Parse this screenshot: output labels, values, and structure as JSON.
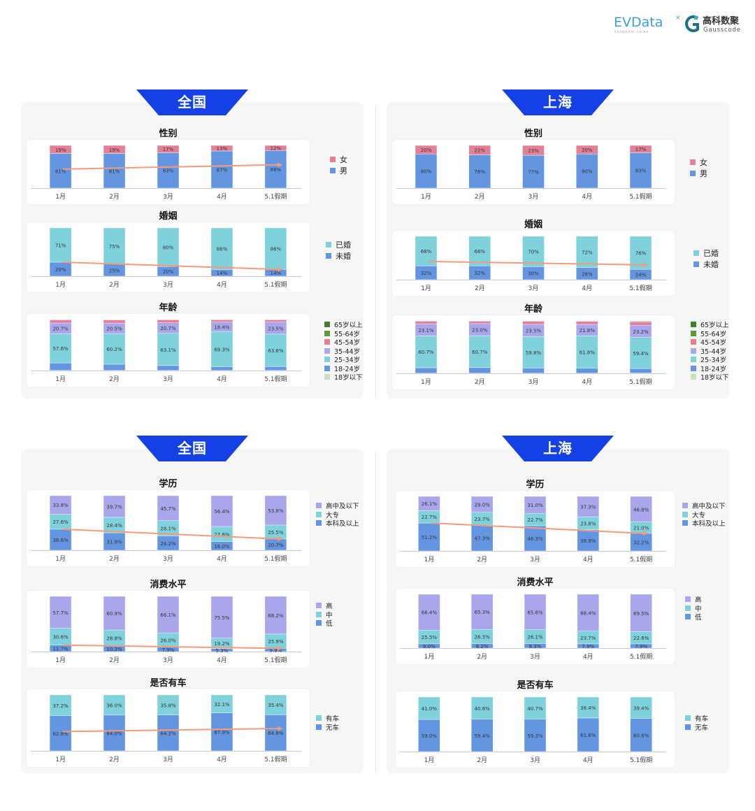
{
  "header": {
    "logo_evdata": "EVData",
    "logo_evdata_sub": "SHANGHAI CHINA",
    "logo_gauss_cn": "高科数聚",
    "logo_gauss_en": "Gausscode"
  },
  "panels": [
    {
      "banner": "全国"
    },
    {
      "banner": "上海"
    },
    {
      "banner": "全国"
    },
    {
      "banner": "上海"
    }
  ],
  "colors": {
    "banner": "#1540e6",
    "blue": "#6495e0",
    "teal": "#7fd1dc",
    "pink": "#e57f95",
    "lavender": "#a9a6ec",
    "dark_green": "#4a7a2e",
    "green": "#5f9a3a",
    "light_green": "#c8e0c0",
    "trend_arrow": "#f79a78"
  },
  "chart_data": [
    {
      "type": "bar",
      "stacked": true,
      "panel": "全国",
      "title": "性别",
      "categories": [
        "1月",
        "2月",
        "3月",
        "4月",
        "5.1假期"
      ],
      "decimals": 0,
      "trend_arrow": "middle",
      "ylim": [
        0,
        100
      ],
      "series": [
        {
          "name": "男",
          "color": "#6495e0",
          "values": [
            81,
            81,
            83,
            87,
            88
          ]
        },
        {
          "name": "女",
          "color": "#e57f95",
          "values": [
            19,
            19,
            17,
            13,
            12
          ]
        }
      ]
    },
    {
      "type": "bar",
      "stacked": true,
      "panel": "全国",
      "title": "婚姻",
      "categories": [
        "1月",
        "2月",
        "3月",
        "4月",
        "5.1假期"
      ],
      "decimals": 0,
      "trend_arrow": "boundary",
      "ylim": [
        0,
        100
      ],
      "series": [
        {
          "name": "未婚",
          "color": "#6495e0",
          "values": [
            29,
            25,
            20,
            14,
            14
          ]
        },
        {
          "name": "已婚",
          "color": "#7fd1dc",
          "values": [
            71,
            75,
            80,
            86,
            86
          ]
        }
      ]
    },
    {
      "type": "bar",
      "stacked": true,
      "panel": "全国",
      "title": "年龄",
      "categories": [
        "1月",
        "2月",
        "3月",
        "4月",
        "5.1假期"
      ],
      "decimals": 1,
      "trend_arrow": "none",
      "ylim": [
        0,
        100
      ],
      "labeled_series": [
        "25-34岁",
        "35-44岁"
      ],
      "series": [
        {
          "name": "18岁以下",
          "color": "#c8e0c0",
          "values": [
            0.3,
            0.3,
            0.3,
            0.2,
            0.3
          ]
        },
        {
          "name": "18-24岁",
          "color": "#6495e0",
          "values": [
            14.5,
            12.0,
            9.5,
            7.0,
            7.5
          ]
        },
        {
          "name": "25-34岁",
          "color": "#7fd1dc",
          "values": [
            57.6,
            60.2,
            63.1,
            69.3,
            63.6
          ]
        },
        {
          "name": "35-44岁",
          "color": "#a9a6ec",
          "values": [
            20.7,
            20.5,
            20.7,
            18.4,
            23.5
          ]
        },
        {
          "name": "45-54岁",
          "color": "#e57f95",
          "values": [
            6.0,
            6.2,
            5.8,
            4.6,
            4.6
          ]
        },
        {
          "name": "55-64岁",
          "color": "#5f9a3a",
          "values": [
            0.8,
            0.7,
            0.5,
            0.4,
            0.4
          ]
        },
        {
          "name": "65岁以上",
          "color": "#4a7a2e",
          "values": [
            0.1,
            0.1,
            0.1,
            0.1,
            0.1
          ]
        }
      ]
    },
    {
      "type": "bar",
      "stacked": true,
      "panel": "上海",
      "title": "性别",
      "categories": [
        "1月",
        "2月",
        "3月",
        "4月",
        "5.1假期"
      ],
      "decimals": 0,
      "trend_arrow": "none",
      "ylim": [
        0,
        100
      ],
      "series": [
        {
          "name": "男",
          "color": "#6495e0",
          "values": [
            80,
            78,
            77,
            80,
            83
          ]
        },
        {
          "name": "女",
          "color": "#e57f95",
          "values": [
            20,
            22,
            23,
            20,
            17
          ]
        }
      ]
    },
    {
      "type": "bar",
      "stacked": true,
      "panel": "上海",
      "title": "婚姻",
      "categories": [
        "1月",
        "2月",
        "3月",
        "4月",
        "5.1假期"
      ],
      "decimals": 0,
      "trend_arrow": "flat",
      "ylim": [
        0,
        100
      ],
      "series": [
        {
          "name": "未婚",
          "color": "#6495e0",
          "values": [
            32,
            32,
            30,
            28,
            24
          ]
        },
        {
          "name": "已婚",
          "color": "#7fd1dc",
          "values": [
            68,
            68,
            70,
            72,
            76
          ]
        }
      ]
    },
    {
      "type": "bar",
      "stacked": true,
      "panel": "上海",
      "title": "年龄",
      "categories": [
        "1月",
        "2月",
        "3月",
        "4月",
        "5.1假期"
      ],
      "decimals": 1,
      "trend_arrow": "none",
      "ylim": [
        0,
        100
      ],
      "labeled_series": [
        "25-34岁",
        "35-44岁"
      ],
      "series": [
        {
          "name": "18岁以下",
          "color": "#c8e0c0",
          "values": [
            0.2,
            0.2,
            0.2,
            0.2,
            0.6
          ]
        },
        {
          "name": "18-24岁",
          "color": "#6495e0",
          "values": [
            10.5,
            11.0,
            10.0,
            9.5,
            8.5
          ]
        },
        {
          "name": "25-34岁",
          "color": "#7fd1dc",
          "values": [
            60.7,
            60.7,
            59.8,
            61.8,
            59.4
          ]
        },
        {
          "name": "35-44岁",
          "color": "#a9a6ec",
          "values": [
            23.1,
            23.0,
            23.5,
            21.8,
            23.2
          ]
        },
        {
          "name": "45-54岁",
          "color": "#e57f95",
          "values": [
            5.0,
            4.6,
            5.9,
            6.0,
            6.5
          ]
        },
        {
          "name": "55-64岁",
          "color": "#5f9a3a",
          "values": [
            0.4,
            0.4,
            0.5,
            0.6,
            1.3
          ]
        },
        {
          "name": "65岁以上",
          "color": "#4a7a2e",
          "values": [
            0.1,
            0.1,
            0.1,
            0.1,
            0.5
          ]
        }
      ]
    },
    {
      "type": "bar",
      "stacked": true,
      "panel": "全国",
      "title": "学历",
      "categories": [
        "1月",
        "2月",
        "3月",
        "4月",
        "5.1假期"
      ],
      "decimals": 1,
      "trend_arrow": "boundary",
      "ylim": [
        0,
        100
      ],
      "series": [
        {
          "name": "本科及以上",
          "color": "#6495e0",
          "values": [
            38.6,
            31.9,
            26.2,
            16.0,
            20.7
          ]
        },
        {
          "name": "大专",
          "color": "#7fd1dc",
          "values": [
            27.6,
            28.4,
            28.1,
            27.6,
            25.5
          ]
        },
        {
          "name": "高中及以下",
          "color": "#a9a6ec",
          "values": [
            33.8,
            39.7,
            45.7,
            56.4,
            53.8
          ]
        }
      ]
    },
    {
      "type": "bar",
      "stacked": true,
      "panel": "全国",
      "title": "消费水平",
      "categories": [
        "1月",
        "2月",
        "3月",
        "4月",
        "5.1假期"
      ],
      "decimals": 1,
      "trend_arrow": "boundary",
      "ylim": [
        0,
        100
      ],
      "series": [
        {
          "name": "低",
          "color": "#6495e0",
          "values": [
            11.7,
            10.3,
            7.9,
            5.3,
            5.9
          ]
        },
        {
          "name": "中",
          "color": "#7fd1dc",
          "values": [
            30.6,
            28.8,
            26.0,
            19.2,
            25.9
          ]
        },
        {
          "name": "高",
          "color": "#a9a6ec",
          "values": [
            57.7,
            60.9,
            66.1,
            75.5,
            68.2
          ]
        }
      ]
    },
    {
      "type": "bar",
      "stacked": true,
      "panel": "全国",
      "title": "是否有车",
      "categories": [
        "1月",
        "2月",
        "3月",
        "4月",
        "5.1假期"
      ],
      "decimals": 1,
      "trend_arrow": "middle",
      "ylim": [
        0,
        100
      ],
      "series": [
        {
          "name": "无车",
          "color": "#6495e0",
          "values": [
            62.8,
            64.0,
            64.2,
            67.9,
            64.6
          ]
        },
        {
          "name": "有车",
          "color": "#7fd1dc",
          "values": [
            37.2,
            36.0,
            35.8,
            32.1,
            35.4
          ]
        }
      ]
    },
    {
      "type": "bar",
      "stacked": true,
      "panel": "上海",
      "title": "学历",
      "categories": [
        "1月",
        "2月",
        "3月",
        "4月",
        "5.1假期"
      ],
      "decimals": 1,
      "trend_arrow": "boundary",
      "ylim": [
        0,
        100
      ],
      "series": [
        {
          "name": "本科及以上",
          "color": "#6495e0",
          "values": [
            51.2,
            47.3,
            46.3,
            38.9,
            32.2
          ]
        },
        {
          "name": "大专",
          "color": "#7fd1dc",
          "values": [
            22.7,
            23.7,
            22.7,
            23.8,
            21.0
          ]
        },
        {
          "name": "高中及以下",
          "color": "#a9a6ec",
          "values": [
            26.1,
            29.0,
            31.0,
            37.3,
            46.8
          ]
        }
      ]
    },
    {
      "type": "bar",
      "stacked": true,
      "panel": "上海",
      "title": "消费水平",
      "categories": [
        "1月",
        "2月",
        "3月",
        "4月",
        "5.1假期"
      ],
      "decimals": 1,
      "trend_arrow": "none",
      "ylim": [
        0,
        100
      ],
      "series": [
        {
          "name": "低",
          "color": "#6495e0",
          "values": [
            8.0,
            8.2,
            8.3,
            7.9,
            7.9
          ]
        },
        {
          "name": "中",
          "color": "#7fd1dc",
          "values": [
            25.5,
            26.5,
            26.1,
            23.7,
            22.6
          ]
        },
        {
          "name": "高",
          "color": "#a9a6ec",
          "values": [
            66.4,
            65.3,
            65.6,
            68.4,
            69.5
          ]
        }
      ]
    },
    {
      "type": "bar",
      "stacked": true,
      "panel": "上海",
      "title": "是否有车",
      "categories": [
        "1月",
        "2月",
        "3月",
        "4月",
        "5.1假期"
      ],
      "decimals": 1,
      "trend_arrow": "none",
      "ylim": [
        0,
        100
      ],
      "series": [
        {
          "name": "无车",
          "color": "#6495e0",
          "values": [
            59.0,
            59.4,
            59.3,
            61.6,
            60.6
          ]
        },
        {
          "name": "有车",
          "color": "#7fd1dc",
          "values": [
            41.0,
            40.6,
            40.7,
            38.4,
            39.4
          ]
        }
      ]
    }
  ]
}
